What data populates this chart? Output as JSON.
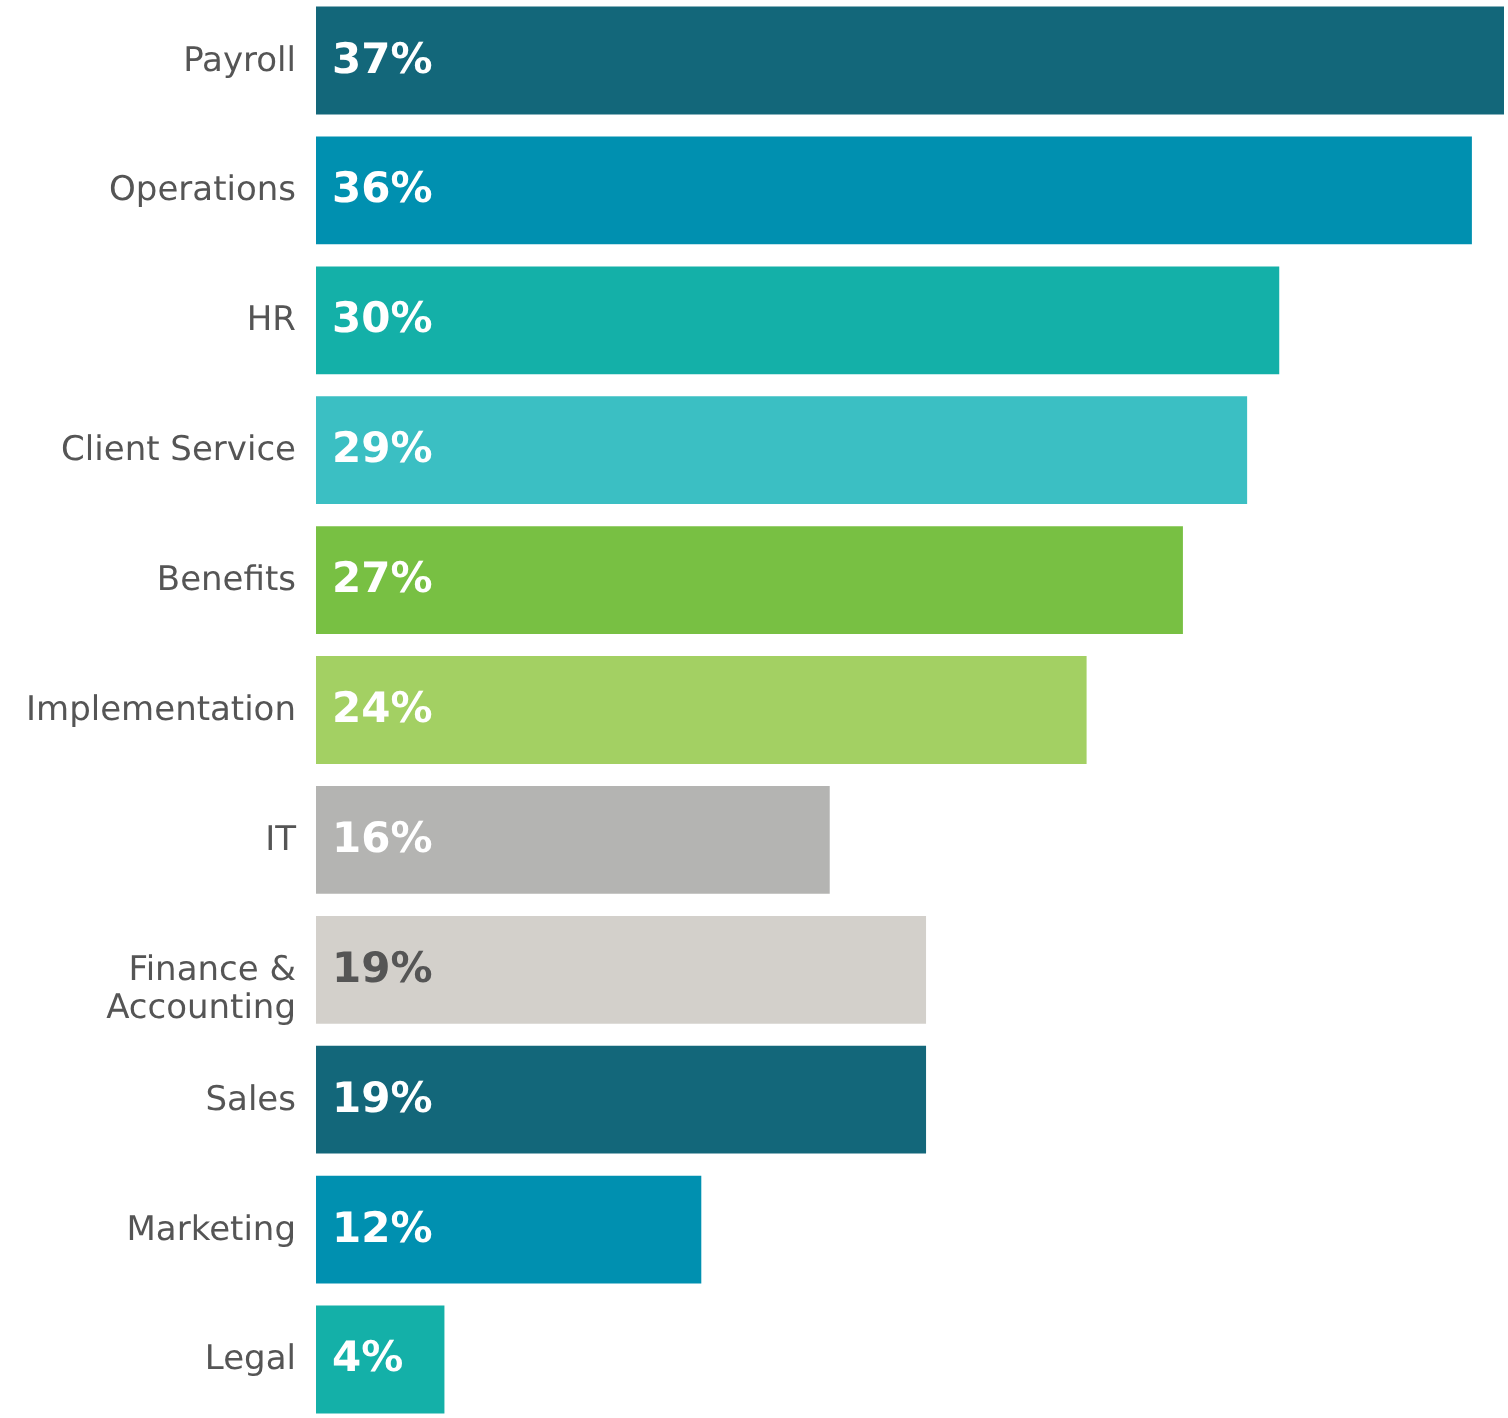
{
  "chart_data": {
    "type": "bar",
    "orientation": "horizontal",
    "categories": [
      "Payroll",
      "Operations",
      "HR",
      "Client Service",
      "Benefits",
      "Implementation",
      "IT",
      "Finance & Accounting",
      "Sales",
      "Marketing",
      "Legal"
    ],
    "values": [
      37,
      36,
      30,
      29,
      27,
      24,
      16,
      19,
      19,
      12,
      4
    ],
    "value_labels": [
      "37%",
      "36%",
      "30%",
      "29%",
      "27%",
      "24%",
      "16%",
      "19%",
      "19%",
      "12%",
      "4%"
    ],
    "colors": [
      "#13677a",
      "#0090b0",
      "#14b0a8",
      "#3bbfc3",
      "#78c043",
      "#a3d063",
      "#b4b4b2",
      "#d3d0cb",
      "#13677a",
      "#0090b0",
      "#14b0a8"
    ]
  }
}
